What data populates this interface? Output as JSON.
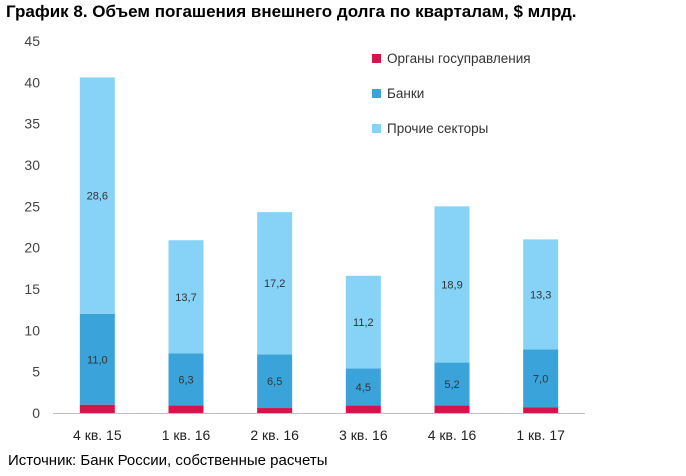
{
  "title": "График 8. Объем погашения внешнего долга по кварталам, $ млрд.",
  "source": "Источник: Банк России, собственные расчеты",
  "chart_data": {
    "type": "bar",
    "stacked": true,
    "categories": [
      "4 кв. 15",
      "1 кв. 16",
      "2 кв. 16",
      "3 кв. 16",
      "4 кв. 16",
      "1 кв. 17"
    ],
    "series": [
      {
        "name": "Органы госуправления",
        "color": "#d6134a",
        "values": [
          1.0,
          0.9,
          0.6,
          0.9,
          0.9,
          0.7
        ],
        "labels": [
          "",
          "",
          "",
          "",
          "",
          ""
        ]
      },
      {
        "name": "Банки",
        "color": "#3aa3d9",
        "values": [
          11.0,
          6.3,
          6.5,
          4.5,
          5.2,
          7.0
        ],
        "labels": [
          "11,0",
          "6,3",
          "6,5",
          "4,5",
          "5,2",
          "7,0"
        ]
      },
      {
        "name": "Прочие секторы",
        "color": "#87d3f7",
        "values": [
          28.6,
          13.7,
          17.2,
          11.2,
          18.9,
          13.3
        ],
        "labels": [
          "28,6",
          "13,7",
          "17,2",
          "11,2",
          "18,9",
          "13,3"
        ]
      }
    ],
    "ylim": [
      0,
      45
    ],
    "yticks": [
      "0",
      "5",
      "10",
      "15",
      "20",
      "25",
      "30",
      "35",
      "40",
      "45"
    ],
    "xlabel": "",
    "ylabel": "",
    "grid": false,
    "legend_position": "top-right"
  }
}
